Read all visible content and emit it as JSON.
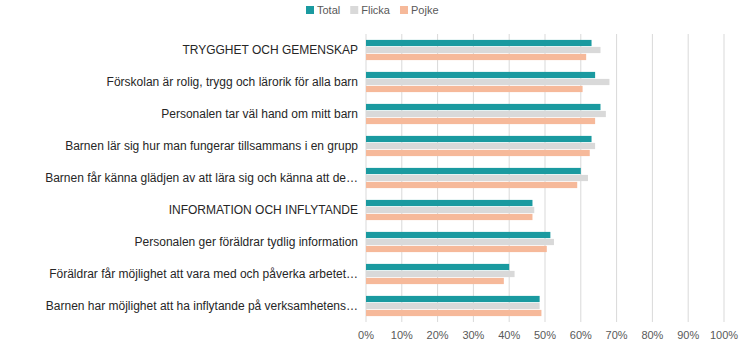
{
  "chart_data": {
    "type": "bar",
    "orientation": "horizontal",
    "legend": "top",
    "grid": true,
    "categories": [
      "TRYGGHET OCH GEMENSKAP",
      "Förskolan är rolig, trygg och lärorik för alla barn",
      "Personalen tar väl hand om mitt barn",
      "Barnen lär sig hur man fungerar tillsammans i en grupp",
      "Barnen får känna glädjen av att lära sig och känna att de…",
      "INFORMATION OCH INFLYTANDE",
      "Personalen ger föräldrar tydlig information",
      "Föräldrar får möjlighet att vara med och påverka arbetet…",
      "Barnen har möjlighet att ha inflytande på verksamhetens…"
    ],
    "series": [
      {
        "name": "Total",
        "color": "#1a9aa0",
        "values": [
          63,
          64,
          65.5,
          63,
          60,
          46.5,
          51.5,
          40,
          48.5
        ]
      },
      {
        "name": "Flicka",
        "color": "#d9d9d9",
        "values": [
          65.5,
          68,
          67,
          64,
          62,
          47,
          52.5,
          41.5,
          48.5
        ]
      },
      {
        "name": "Pojke",
        "color": "#f6b99a",
        "values": [
          61.5,
          60.5,
          64,
          62.5,
          59,
          46.5,
          50.5,
          38.5,
          49
        ]
      }
    ],
    "xlim": [
      0,
      100
    ],
    "xticks": [
      {
        "value": 0,
        "label": "0%"
      },
      {
        "value": 10,
        "label": "10%"
      },
      {
        "value": 20,
        "label": "20%"
      },
      {
        "value": 30,
        "label": "30%"
      },
      {
        "value": 40,
        "label": "40%"
      },
      {
        "value": 50,
        "label": "50%"
      },
      {
        "value": 60,
        "label": "60%"
      },
      {
        "value": 70,
        "label": "70%"
      },
      {
        "value": 80,
        "label": "80%"
      },
      {
        "value": 90,
        "label": "90%"
      },
      {
        "value": 100,
        "label": "100%"
      }
    ]
  }
}
